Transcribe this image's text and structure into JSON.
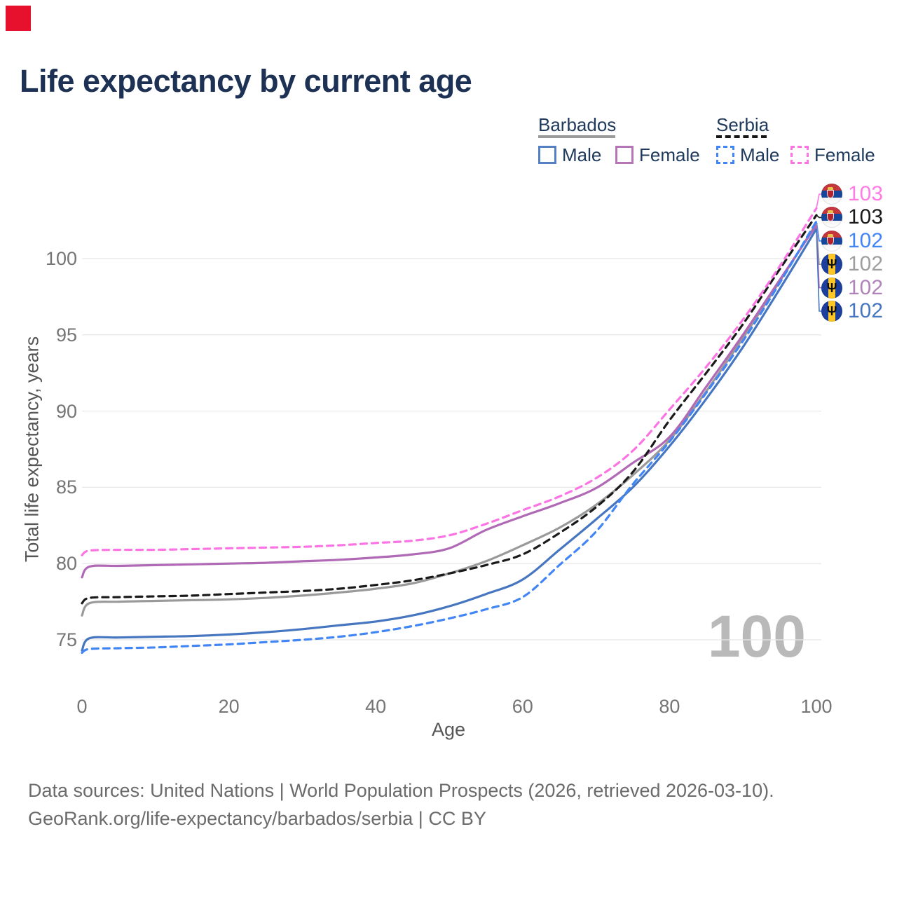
{
  "brand": {
    "logo_color": "#e8112d"
  },
  "title": "Life expectancy by current age",
  "legend": {
    "barbados": {
      "label": "Barbados",
      "male": "Male",
      "female": "Female"
    },
    "serbia": {
      "label": "Serbia",
      "male": "Male",
      "female": "Female"
    }
  },
  "colors": {
    "barbados_male": "#4676c0",
    "barbados_female": "#b069b5",
    "barbados_total": "#9a9a9a",
    "serbia_male": "#4285f4",
    "serbia_female": "#fc74e4",
    "serbia_total": "#1a1a1a",
    "gridline": "#e8e8e8",
    "axis_text": "#757575"
  },
  "chart_data": {
    "type": "line",
    "title": "Life expectancy by current age",
    "xlabel": "Age",
    "ylabel": "Total life expectancy, years",
    "xticks": [
      0,
      20,
      40,
      60,
      80,
      100
    ],
    "yticks": [
      75,
      80,
      85,
      90,
      95,
      100
    ],
    "xlim": [
      0,
      100
    ],
    "ylim": [
      74,
      105
    ],
    "grid": "horizontal",
    "x": [
      0,
      1,
      5,
      10,
      15,
      20,
      25,
      30,
      35,
      40,
      45,
      50,
      55,
      60,
      65,
      70,
      75,
      80,
      85,
      90,
      95,
      100
    ],
    "series": [
      {
        "id": "barbados_total",
        "name": "Barbados",
        "country": "Barbados",
        "sex": "total",
        "color": "#9a9a9a",
        "dashed": false,
        "values": [
          76.6,
          77.4,
          77.5,
          77.55,
          77.6,
          77.65,
          77.75,
          77.9,
          78.1,
          78.35,
          78.7,
          79.35,
          80.15,
          81.2,
          82.35,
          83.85,
          85.8,
          88.1,
          91.3,
          94.8,
          98.5,
          102.3
        ]
      },
      {
        "id": "barbados_female",
        "name": "Barbados Female",
        "country": "Barbados",
        "sex": "female",
        "color": "#b069b5",
        "dashed": false,
        "values": [
          79.1,
          79.8,
          79.85,
          79.9,
          79.95,
          80.0,
          80.05,
          80.15,
          80.25,
          80.4,
          80.6,
          81.0,
          82.2,
          83.1,
          83.95,
          84.95,
          86.6,
          88.3,
          91.6,
          95.0,
          98.6,
          102.2
        ]
      },
      {
        "id": "barbados_male",
        "name": "Barbados Male",
        "country": "Barbados",
        "sex": "male",
        "color": "#4676c0",
        "dashed": false,
        "values": [
          74.3,
          75.1,
          75.15,
          75.2,
          75.25,
          75.35,
          75.5,
          75.7,
          75.95,
          76.2,
          76.6,
          77.2,
          78.0,
          78.95,
          80.9,
          82.9,
          85.0,
          87.7,
          90.8,
          94.2,
          98.0,
          101.95
        ]
      },
      {
        "id": "serbia_total",
        "name": "Serbia",
        "country": "Serbia",
        "sex": "total",
        "color": "#1a1a1a",
        "dashed": true,
        "values": [
          77.4,
          77.75,
          77.8,
          77.85,
          77.9,
          78.0,
          78.1,
          78.2,
          78.35,
          78.6,
          78.9,
          79.35,
          79.9,
          80.6,
          82.0,
          83.7,
          86.0,
          89.4,
          92.5,
          95.7,
          99.3,
          102.85
        ]
      },
      {
        "id": "serbia_female",
        "name": "Serbia Female",
        "country": "Serbia",
        "sex": "female",
        "color": "#fc74e4",
        "dashed": true,
        "values": [
          80.55,
          80.85,
          80.9,
          80.9,
          80.95,
          81.0,
          81.05,
          81.1,
          81.2,
          81.35,
          81.5,
          81.85,
          82.6,
          83.5,
          84.4,
          85.6,
          87.4,
          90.1,
          92.9,
          96.0,
          99.5,
          103.3
        ]
      },
      {
        "id": "serbia_male",
        "name": "Serbia Male",
        "country": "Serbia",
        "sex": "male",
        "color": "#4285f4",
        "dashed": true,
        "values": [
          74.15,
          74.4,
          74.45,
          74.5,
          74.6,
          74.7,
          74.85,
          75.0,
          75.2,
          75.5,
          75.9,
          76.4,
          77.0,
          77.8,
          79.9,
          82.1,
          85.2,
          88.0,
          91.2,
          94.6,
          98.4,
          102.45
        ]
      }
    ],
    "end_labels": [
      {
        "series": "serbia_female",
        "value": "103",
        "text_color": "#ff7ce5",
        "flag": "serbia"
      },
      {
        "series": "serbia_total",
        "value": "103",
        "text_color": "#1a1a1a",
        "flag": "serbia"
      },
      {
        "series": "serbia_male",
        "value": "102",
        "text_color": "#4285f4",
        "flag": "serbia"
      },
      {
        "series": "barbados_total",
        "value": "102",
        "text_color": "#9e9e9e",
        "flag": "barbados"
      },
      {
        "series": "barbados_female",
        "value": "102",
        "text_color": "#b083b8",
        "flag": "barbados"
      },
      {
        "series": "barbados_male",
        "value": "102",
        "text_color": "#4676c0",
        "flag": "barbados"
      }
    ]
  },
  "watermark": "100",
  "footer": {
    "line1": "Data sources: United Nations | World Population Prospects (2026, retrieved 2026-03-10).",
    "line2": "GeoRank.org/life-expectancy/barbados/serbia | CC BY"
  }
}
